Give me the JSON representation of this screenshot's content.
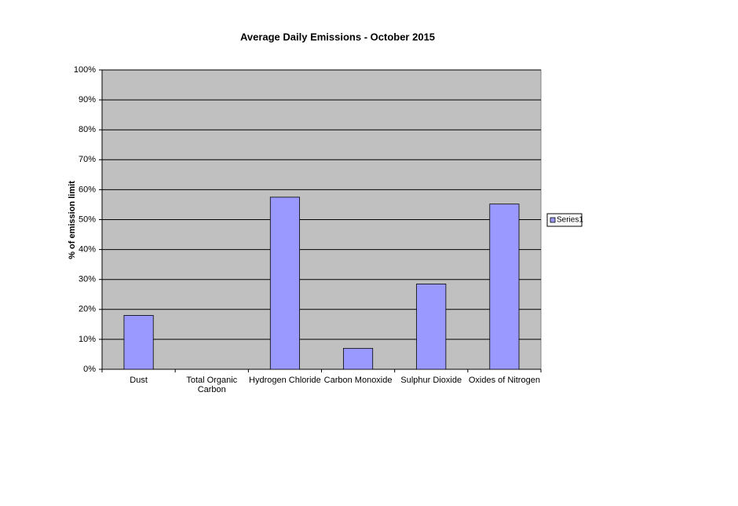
{
  "chart_data": {
    "type": "bar",
    "title": "Average Daily Emissions - October 2015",
    "y_label": "% of emission limit",
    "categories": [
      "Dust",
      "Total Organic Carbon",
      "Hydrogen Chloride",
      "Carbon Monoxide",
      "Sulphur Dioxide",
      "Oxides of Nitrogen"
    ],
    "series": [
      {
        "name": "Series1",
        "color": "#9999ff",
        "values": [
          18,
          0,
          57.5,
          7,
          28.5,
          55.2
        ]
      }
    ],
    "ylim": [
      0,
      100
    ],
    "yticks": [
      {
        "value": 0,
        "label": "0%"
      },
      {
        "value": 10,
        "label": "10%"
      },
      {
        "value": 20,
        "label": "20%"
      },
      {
        "value": 30,
        "label": "30%"
      },
      {
        "value": 40,
        "label": "40%"
      },
      {
        "value": 50,
        "label": "50%"
      },
      {
        "value": 60,
        "label": "60%"
      },
      {
        "value": 70,
        "label": "70%"
      },
      {
        "value": 80,
        "label": "80%"
      },
      {
        "value": 90,
        "label": "90%"
      },
      {
        "value": 100,
        "label": "100%"
      }
    ],
    "grid": true,
    "legend": "right",
    "plot_background": "#c0c0c0"
  }
}
